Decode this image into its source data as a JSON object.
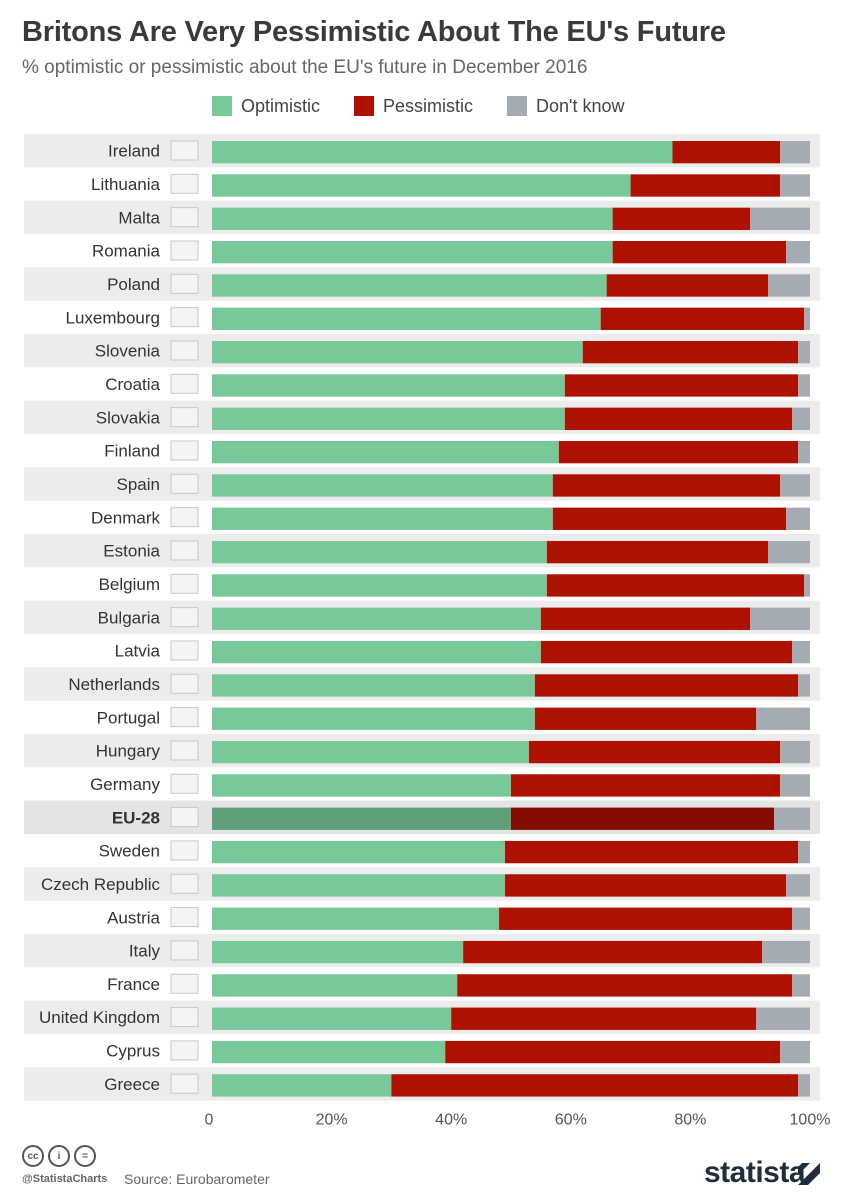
{
  "header": {
    "title": "Britons Are Very Pessimistic About The EU's Future",
    "subtitle": "% optimistic or pessimistic about the EU's future in December 2016"
  },
  "legend": {
    "optimistic": "Optimistic",
    "pessimistic": "Pessimistic",
    "dont_know": "Don't know"
  },
  "colors": {
    "optimistic": "#78c899",
    "pessimistic": "#ad1100",
    "dont_know": "#a4abb3",
    "optimistic_highlight": "#5fa07a",
    "pessimistic_highlight": "#850c00",
    "stripe": "#ececec"
  },
  "chart_data": {
    "type": "bar",
    "orientation": "horizontal",
    "stacked": true,
    "title": "Britons Are Very Pessimistic About The EU's Future",
    "subtitle": "% optimistic or pessimistic about the EU's future in December 2016",
    "xlabel": "",
    "ylabel": "",
    "xlim": [
      0,
      100
    ],
    "x_ticks": [
      "0",
      "20%",
      "40%",
      "60%",
      "80%",
      "100%"
    ],
    "x_tick_values": [
      0,
      20,
      40,
      60,
      80,
      100
    ],
    "highlight": "EU-28",
    "categories": [
      "Ireland",
      "Lithuania",
      "Malta",
      "Romania",
      "Poland",
      "Luxembourg",
      "Slovenia",
      "Croatia",
      "Slovakia",
      "Finland",
      "Spain",
      "Denmark",
      "Estonia",
      "Belgium",
      "Bulgaria",
      "Latvia",
      "Netherlands",
      "Portugal",
      "Hungary",
      "Germany",
      "EU-28",
      "Sweden",
      "Czech Republic",
      "Austria",
      "Italy",
      "France",
      "United Kingdom",
      "Cyprus",
      "Greece"
    ],
    "series": [
      {
        "name": "Optimistic",
        "values": [
          77,
          70,
          67,
          67,
          66,
          65,
          62,
          59,
          59,
          58,
          57,
          57,
          56,
          56,
          55,
          55,
          54,
          54,
          53,
          50,
          50,
          49,
          49,
          48,
          42,
          41,
          40,
          39,
          30
        ]
      },
      {
        "name": "Pessimistic",
        "values": [
          18,
          25,
          23,
          29,
          27,
          34,
          36,
          39,
          38,
          40,
          38,
          39,
          37,
          43,
          35,
          42,
          44,
          37,
          42,
          45,
          44,
          49,
          47,
          49,
          50,
          56,
          51,
          56,
          68
        ]
      },
      {
        "name": "Don't know",
        "values": [
          5,
          5,
          10,
          4,
          7,
          1,
          2,
          2,
          3,
          2,
          5,
          4,
          7,
          1,
          10,
          3,
          2,
          9,
          5,
          5,
          6,
          2,
          4,
          3,
          8,
          3,
          9,
          5,
          2
        ]
      }
    ]
  },
  "footer": {
    "handle": "@StatistaCharts",
    "source": "Source: Eurobarometer",
    "brand": "statista"
  },
  "icons": [
    "creative-commons-icon",
    "attribution-icon",
    "no-derivatives-icon",
    "statista-logo-icon"
  ]
}
